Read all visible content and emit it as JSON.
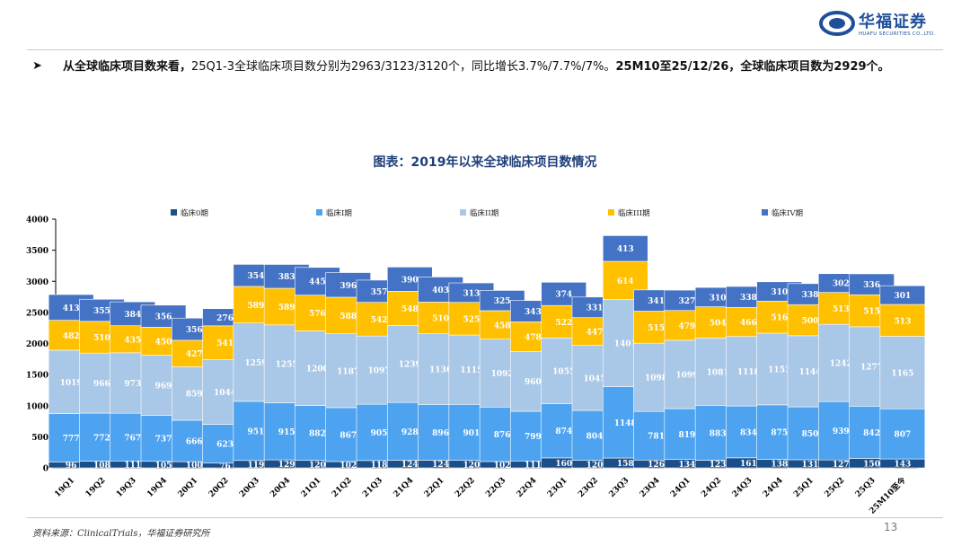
{
  "brand": {
    "name_cn": "华福证券",
    "name_en": "HUAFU SECURITIES CO.,LTD."
  },
  "headline": {
    "bullet": "➤",
    "lead": "从全球临床项目数来看，",
    "body": "25Q1-3全球临床项目数分别为2963/3123/3120个，同比增长3.7%/7.7%/7%。",
    "tail": "25M10至25/12/26，全球临床项目数为2929个。"
  },
  "colors": {
    "phase0": "#1b4f8a",
    "phase1": "#4da3f0",
    "phase2": "#a9c7e6",
    "phase3": "#ffc000",
    "phase4": "#4472c4",
    "axis": "#000000",
    "title": "#1f3f7a"
  },
  "chart_data": {
    "type": "bar",
    "stacked": true,
    "title": "图表：2019年以来全球临床项目数情况",
    "ylim": [
      0,
      4000
    ],
    "yticks": [
      0,
      500,
      1000,
      1500,
      2000,
      2500,
      3000,
      3500,
      4000
    ],
    "legend_position": "top",
    "categories": [
      "19Q1",
      "19Q2",
      "19Q3",
      "19Q4",
      "20Q1",
      "20Q2",
      "20Q3",
      "20Q4",
      "21Q1",
      "21Q2",
      "21Q3",
      "21Q4",
      "22Q1",
      "22Q2",
      "22Q3",
      "22Q4",
      "23Q1",
      "23Q2",
      "23Q3",
      "23Q4",
      "24Q1",
      "24Q2",
      "24Q3",
      "24Q4",
      "25Q1",
      "25Q2",
      "25Q3",
      "25M10至今"
    ],
    "series": [
      {
        "name": "临床0期",
        "color_key": "phase0",
        "values": [
          96,
          108,
          111,
          105,
          100,
          76,
          119,
          129,
          120,
          102,
          118,
          124,
          124,
          120,
          102,
          111,
          160,
          120,
          158,
          126,
          134,
          123,
          161,
          138,
          131,
          127,
          150,
          143
        ]
      },
      {
        "name": "临床I期",
        "color_key": "phase1",
        "values": [
          777,
          772,
          767,
          737,
          666,
          623,
          951,
          915,
          882,
          867,
          905,
          928,
          896,
          901,
          876,
          799,
          874,
          804,
          1148,
          781,
          819,
          883,
          834,
          875,
          850,
          939,
          842,
          807
        ]
      },
      {
        "name": "临床II期",
        "color_key": "phase2",
        "values": [
          1019,
          966,
          973,
          969,
          859,
          1044,
          1259,
          1255,
          1200,
          1187,
          1097,
          1239,
          1136,
          1115,
          1092,
          960,
          1055,
          1045,
          1401,
          1098,
          1099,
          1081,
          1118,
          1153,
          1144,
          1242,
          1277,
          1165
        ]
      },
      {
        "name": "临床III期",
        "color_key": "phase3",
        "values": [
          482,
          510,
          435,
          450,
          427,
          541,
          589,
          589,
          576,
          588,
          542,
          548,
          510,
          525,
          458,
          478,
          522,
          447,
          614,
          515,
          479,
          504,
          466,
          516,
          500,
          513,
          515,
          513
        ]
      },
      {
        "name": "临床IV期",
        "color_key": "phase4",
        "values": [
          413,
          355,
          384,
          356,
          356,
          276,
          354,
          383,
          445,
          396,
          357,
          390,
          403,
          313,
          325,
          343,
          374,
          331,
          413,
          341,
          327,
          310,
          338,
          310,
          338,
          302,
          336,
          301
        ]
      }
    ]
  },
  "footer": {
    "source": "资料来源：ClinicalTrials，华福证券研究所",
    "page_number": "13"
  }
}
